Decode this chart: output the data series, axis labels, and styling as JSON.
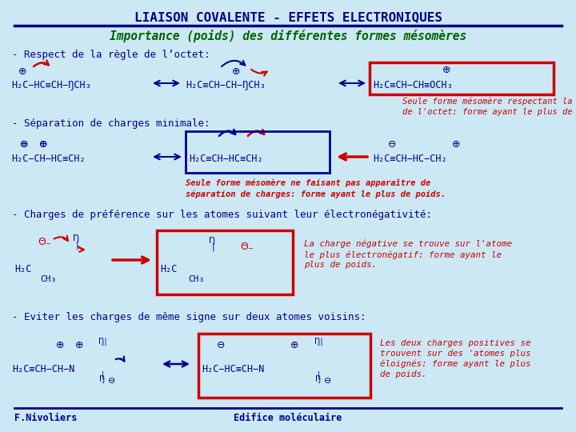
{
  "bg_color": "#cce8f4",
  "title": "LIAISON COVALENTE - EFFETS ELECTRONIQUES",
  "title_color": "#00008B",
  "subtitle": "Importance (poids) des différentes formes mésomères",
  "subtitle_color": "#006400",
  "footer_left": "F.Nivoliers",
  "footer_center": "Edifice moléculaire",
  "footer_color": "#00008B",
  "rule1": "- Respect de la règle de l’octet:",
  "rule2": "- Séparation de charges minimale:",
  "rule3": "- Charges de préférence sur les atomes suivant leur électronégativité:",
  "rule4": "- Eviter les charges de même signe sur deux atomes voisins:",
  "blue": "#00008B",
  "red": "#CC0000",
  "green": "#006400"
}
